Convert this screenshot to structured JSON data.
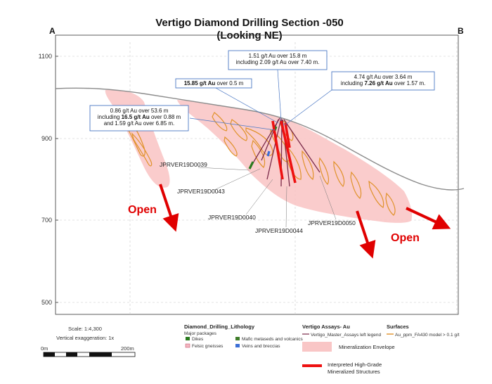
{
  "title_line1": "Vertigo Diamond Drilling Section -050",
  "title_line2": "(Looking NE)",
  "corner_left": "A",
  "corner_right": "B",
  "elevation_ticks": [
    "1100",
    "900",
    "700",
    "500"
  ],
  "annotations": [
    {
      "id": "ann1",
      "lines": [
        [
          {
            "t": "1.51 g/t Au over 15.8 m",
            "b": false
          }
        ],
        [
          {
            "t": "including 2.09 g/t Au over 7.40 m.",
            "b": false
          }
        ]
      ]
    },
    {
      "id": "ann2",
      "lines": [
        [
          {
            "t": "15.85 g/t Au",
            "b": true
          },
          {
            "t": " over 0.5 m",
            "b": false
          }
        ]
      ]
    },
    {
      "id": "ann3",
      "lines": [
        [
          {
            "t": "4.74 g/t Au over 3.64 m",
            "b": false
          }
        ],
        [
          {
            "t": "including ",
            "b": false
          },
          {
            "t": "7.26 g/t Au",
            "b": true
          },
          {
            "t": " over 1.57 m.",
            "b": false
          }
        ]
      ]
    },
    {
      "id": "ann4",
      "lines": [
        [
          {
            "t": "0.86 g/t Au over 53.6 m",
            "b": false
          }
        ],
        [
          {
            "t": "including ",
            "b": false
          },
          {
            "t": "16.5 g/t Au",
            "b": true
          },
          {
            "t": " over 0.88 m",
            "b": false
          }
        ],
        [
          {
            "t": "and 1.59 g/t Au over 6.85 m.",
            "b": false
          }
        ]
      ]
    }
  ],
  "drillholes": [
    "JPRVER19D0039",
    "JPRVER19D0043",
    "JPRVER19D0040",
    "JPRVER19D0044",
    "JPRVER19D0050"
  ],
  "open_label": "Open",
  "scale": {
    "ratio": "Scale:  1:4,300",
    "exaggeration": "Vertical exaggeration: 1x",
    "start": "0m",
    "end": "200m"
  },
  "legend": {
    "lithology_title": "Diamond_Drilling_Lithology",
    "major_packages": "Major packages",
    "items": [
      {
        "label": "Dikes",
        "color": "#2a7a1e"
      },
      {
        "label": "Mafic metaseds and volcanics",
        "color": "#3f7d2a"
      },
      {
        "label": "Felsic gneisses",
        "color": "#f2b8c0"
      },
      {
        "label": "Veins and breccias",
        "color": "#3b6fd6"
      }
    ],
    "assays_title": "Vertigo Assays- Au",
    "assays_item": "Vertigo_Master_Assays left legend",
    "surfaces_title": "Surfaces",
    "surfaces_item": "Au_ppm_FA430 model > 0.1 g/t",
    "envelope_label": "Mineralization Envelope",
    "structures_line1": "Interpreted High-Grade",
    "structures_line2": "Mineralized Structures"
  },
  "colors": {
    "envelope": "#f9c6c6",
    "high_grade": "#ee1111",
    "gold_contour": "#e0922a",
    "topography": "#8c8c8c",
    "annotation_border": "#4a77c4",
    "drill_trace": "#7a2a4a"
  }
}
